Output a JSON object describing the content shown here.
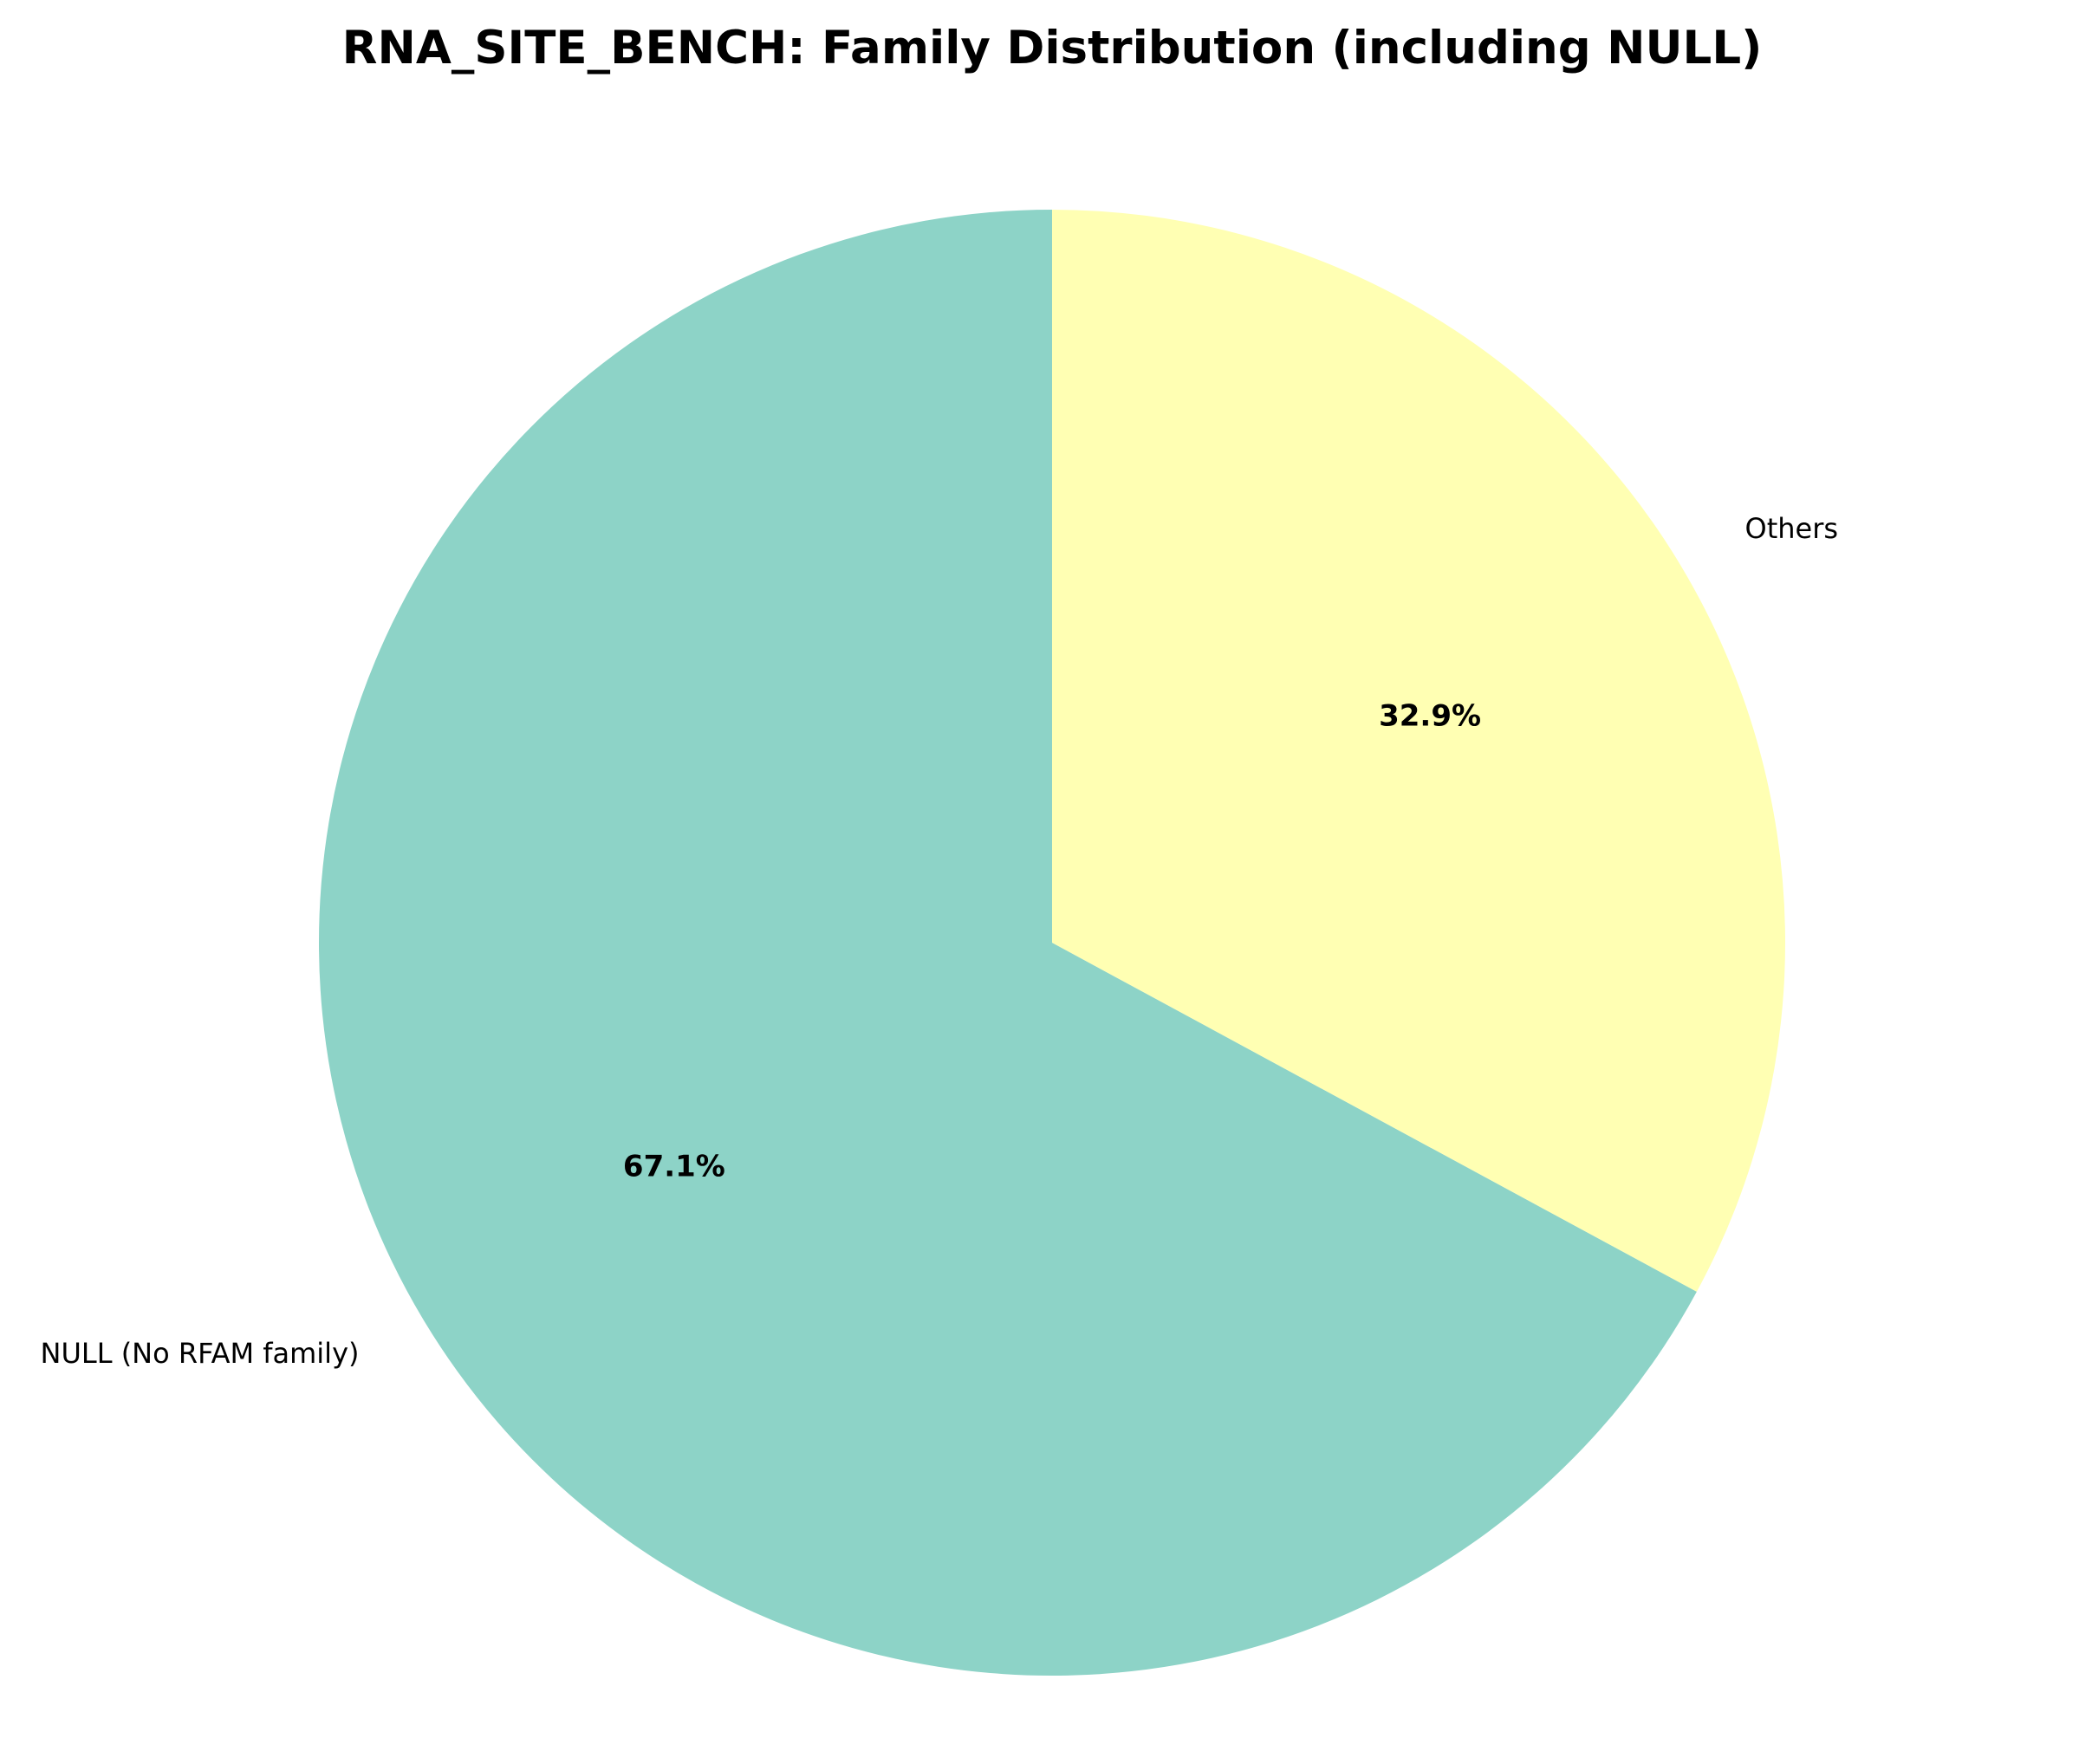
{
  "chart_data": {
    "type": "pie",
    "title": "RNA_SITE_BENCH: Family Distribution (including NULL)",
    "labels": [
      "NULL (No RFAM family)",
      "Others"
    ],
    "values": [
      67.1,
      32.9
    ],
    "percent_labels": [
      "67.1%",
      "32.9%"
    ],
    "colors": [
      "#8dd3c7",
      "#ffffb3"
    ],
    "start_angle_deg": 90,
    "direction": "counterclockwise"
  }
}
